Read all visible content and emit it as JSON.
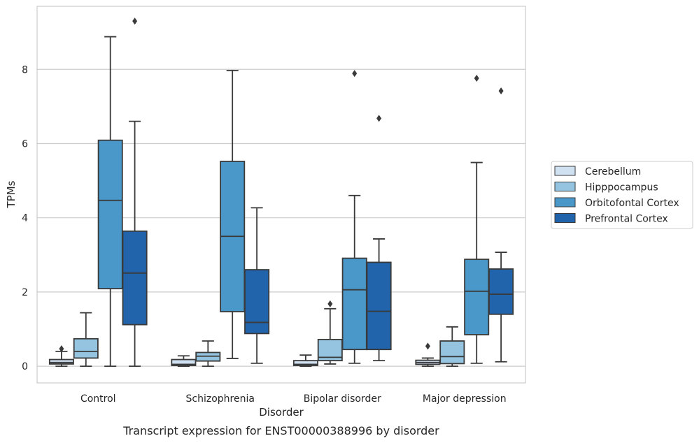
{
  "chart_data": {
    "type": "box",
    "caption": "Transcript expression for ENST00000388996 by disorder",
    "xlabel": "Disorder",
    "ylabel": "TPMs",
    "ylim": [
      -0.45,
      9.7
    ],
    "yticks": [
      0,
      2,
      4,
      6,
      8
    ],
    "grid": "horizontal",
    "legend_placement": "right",
    "categories": [
      "Control",
      "Schizophrenia",
      "Bipolar disorder",
      "Major depression"
    ],
    "series": [
      {
        "name": "Cerebellum",
        "color": "#d0e1f2",
        "boxes": [
          {
            "whisker_low": 0.0,
            "q1": 0.06,
            "median": 0.1,
            "q3": 0.18,
            "whisker_high": 0.4,
            "outliers": [
              0.47
            ]
          },
          {
            "whisker_low": 0.0,
            "q1": 0.02,
            "median": 0.05,
            "q3": 0.18,
            "whisker_high": 0.28,
            "outliers": []
          },
          {
            "whisker_low": 0.0,
            "q1": 0.02,
            "median": 0.05,
            "q3": 0.15,
            "whisker_high": 0.3,
            "outliers": []
          },
          {
            "whisker_low": 0.0,
            "q1": 0.05,
            "median": 0.1,
            "q3": 0.16,
            "whisker_high": 0.22,
            "outliers": [
              0.54
            ]
          }
        ]
      },
      {
        "name": "Hipppocampus",
        "color": "#94c4df",
        "boxes": [
          {
            "whisker_low": 0.0,
            "q1": 0.22,
            "median": 0.4,
            "q3": 0.74,
            "whisker_high": 1.44,
            "outliers": []
          },
          {
            "whisker_low": 0.0,
            "q1": 0.14,
            "median": 0.27,
            "q3": 0.37,
            "whisker_high": 0.68,
            "outliers": []
          },
          {
            "whisker_low": 0.06,
            "q1": 0.15,
            "median": 0.24,
            "q3": 0.72,
            "whisker_high": 1.55,
            "outliers": [
              1.68
            ]
          },
          {
            "whisker_low": 0.0,
            "q1": 0.07,
            "median": 0.26,
            "q3": 0.68,
            "whisker_high": 1.06,
            "outliers": []
          }
        ]
      },
      {
        "name": "Orbitofontal Cortex",
        "color": "#4a98c9",
        "boxes": [
          {
            "whisker_low": 0.0,
            "q1": 2.09,
            "median": 4.47,
            "q3": 6.09,
            "whisker_high": 8.88,
            "outliers": []
          },
          {
            "whisker_low": 0.21,
            "q1": 1.47,
            "median": 3.5,
            "q3": 5.52,
            "whisker_high": 7.97,
            "outliers": []
          },
          {
            "whisker_low": 0.08,
            "q1": 0.45,
            "median": 2.06,
            "q3": 2.91,
            "whisker_high": 4.6,
            "outliers": [
              7.89
            ]
          },
          {
            "whisker_low": 0.08,
            "q1": 0.85,
            "median": 2.02,
            "q3": 2.88,
            "whisker_high": 5.49,
            "outliers": [
              7.76
            ]
          }
        ]
      },
      {
        "name": "Prefrontal Cortex",
        "color": "#2164ab",
        "boxes": [
          {
            "whisker_low": 0.0,
            "q1": 1.12,
            "median": 2.51,
            "q3": 3.64,
            "whisker_high": 6.6,
            "outliers": [
              9.3
            ]
          },
          {
            "whisker_low": 0.08,
            "q1": 0.88,
            "median": 1.18,
            "q3": 2.6,
            "whisker_high": 4.27,
            "outliers": []
          },
          {
            "whisker_low": 0.15,
            "q1": 0.45,
            "median": 1.48,
            "q3": 2.8,
            "whisker_high": 3.43,
            "outliers": [
              6.68
            ]
          },
          {
            "whisker_low": 0.12,
            "q1": 1.4,
            "median": 1.94,
            "q3": 2.62,
            "whisker_high": 3.07,
            "outliers": [
              7.42
            ]
          }
        ]
      }
    ]
  }
}
